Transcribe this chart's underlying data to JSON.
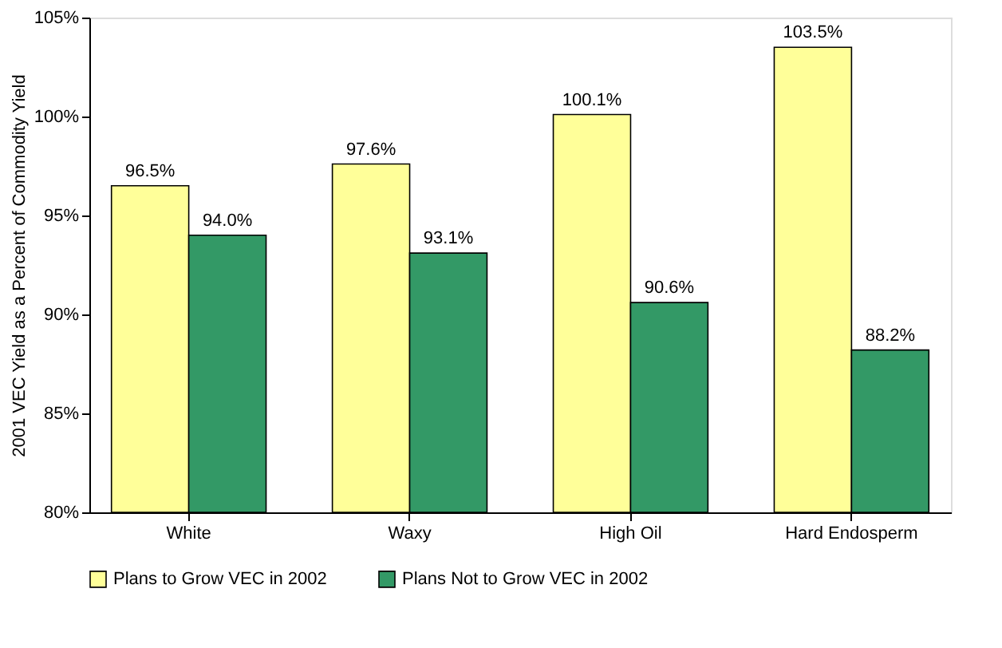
{
  "chart_data": {
    "type": "bar",
    "ylabel": "2001 VEC Yield as a Percent of Commodity Yield",
    "categories": [
      "White",
      "Waxy",
      "High Oil",
      "Hard Endosperm"
    ],
    "series": [
      {
        "name": "Plans to Grow VEC in 2002",
        "color": "#ffff99",
        "values": [
          96.5,
          97.6,
          100.1,
          103.5
        ],
        "value_labels": [
          "96.5%",
          "97.6%",
          "100.1%",
          "103.5%"
        ]
      },
      {
        "name": "Plans Not to Grow VEC in 2002",
        "color": "#339966",
        "values": [
          94.0,
          93.1,
          90.6,
          88.2
        ],
        "value_labels": [
          "94.0%",
          "93.1%",
          "90.6%",
          "88.2%"
        ]
      }
    ],
    "ylim": [
      80,
      105
    ],
    "yticks": [
      {
        "value": 80,
        "label": "80%"
      },
      {
        "value": 85,
        "label": "85%"
      },
      {
        "value": 90,
        "label": "90%"
      },
      {
        "value": 95,
        "label": "95%"
      },
      {
        "value": 100,
        "label": "100%"
      },
      {
        "value": 105,
        "label": "105%"
      }
    ],
    "grid": false,
    "legend": "bottom"
  }
}
